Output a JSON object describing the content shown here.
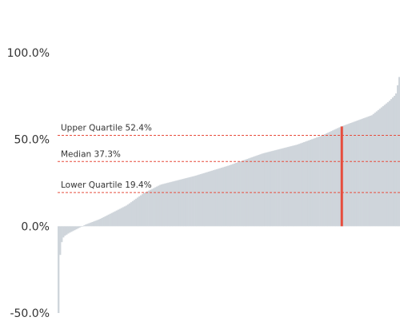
{
  "chart_data": {
    "type": "bar",
    "sorted": "ascending",
    "ylim": [
      -50,
      100
    ],
    "y_ticks": [
      {
        "value": 100,
        "label": "100.0%"
      },
      {
        "value": 50,
        "label": "50.0%"
      },
      {
        "value": 0,
        "label": "0.0%"
      },
      {
        "value": -50,
        "label": "-50.0%"
      }
    ],
    "bar_color": "#cfd5db",
    "highlight_color": "#e74c3c",
    "reference_line_color": "#e74c3c",
    "reference_lines": [
      {
        "value": 52.4,
        "label": "Upper Quartile 52.4%"
      },
      {
        "value": 37.3,
        "label": "Median 37.3%"
      },
      {
        "value": 19.4,
        "label": "Lower Quartile 19.4%"
      }
    ],
    "highlight": {
      "rank_fraction": 0.83,
      "value": 57.5
    },
    "distribution_profile": [
      [
        0.0,
        -50
      ],
      [
        0.003,
        -20
      ],
      [
        0.008,
        -10
      ],
      [
        0.015,
        -6
      ],
      [
        0.03,
        -4
      ],
      [
        0.06,
        -1
      ],
      [
        0.08,
        1
      ],
      [
        0.12,
        4
      ],
      [
        0.2,
        12
      ],
      [
        0.25,
        19
      ],
      [
        0.3,
        24
      ],
      [
        0.4,
        29
      ],
      [
        0.5,
        35
      ],
      [
        0.6,
        42
      ],
      [
        0.7,
        47
      ],
      [
        0.77,
        52
      ],
      [
        0.83,
        57.5
      ],
      [
        0.92,
        64
      ],
      [
        0.97,
        72
      ],
      [
        0.99,
        76
      ],
      [
        1.0,
        86
      ]
    ],
    "bar_count": 212
  }
}
